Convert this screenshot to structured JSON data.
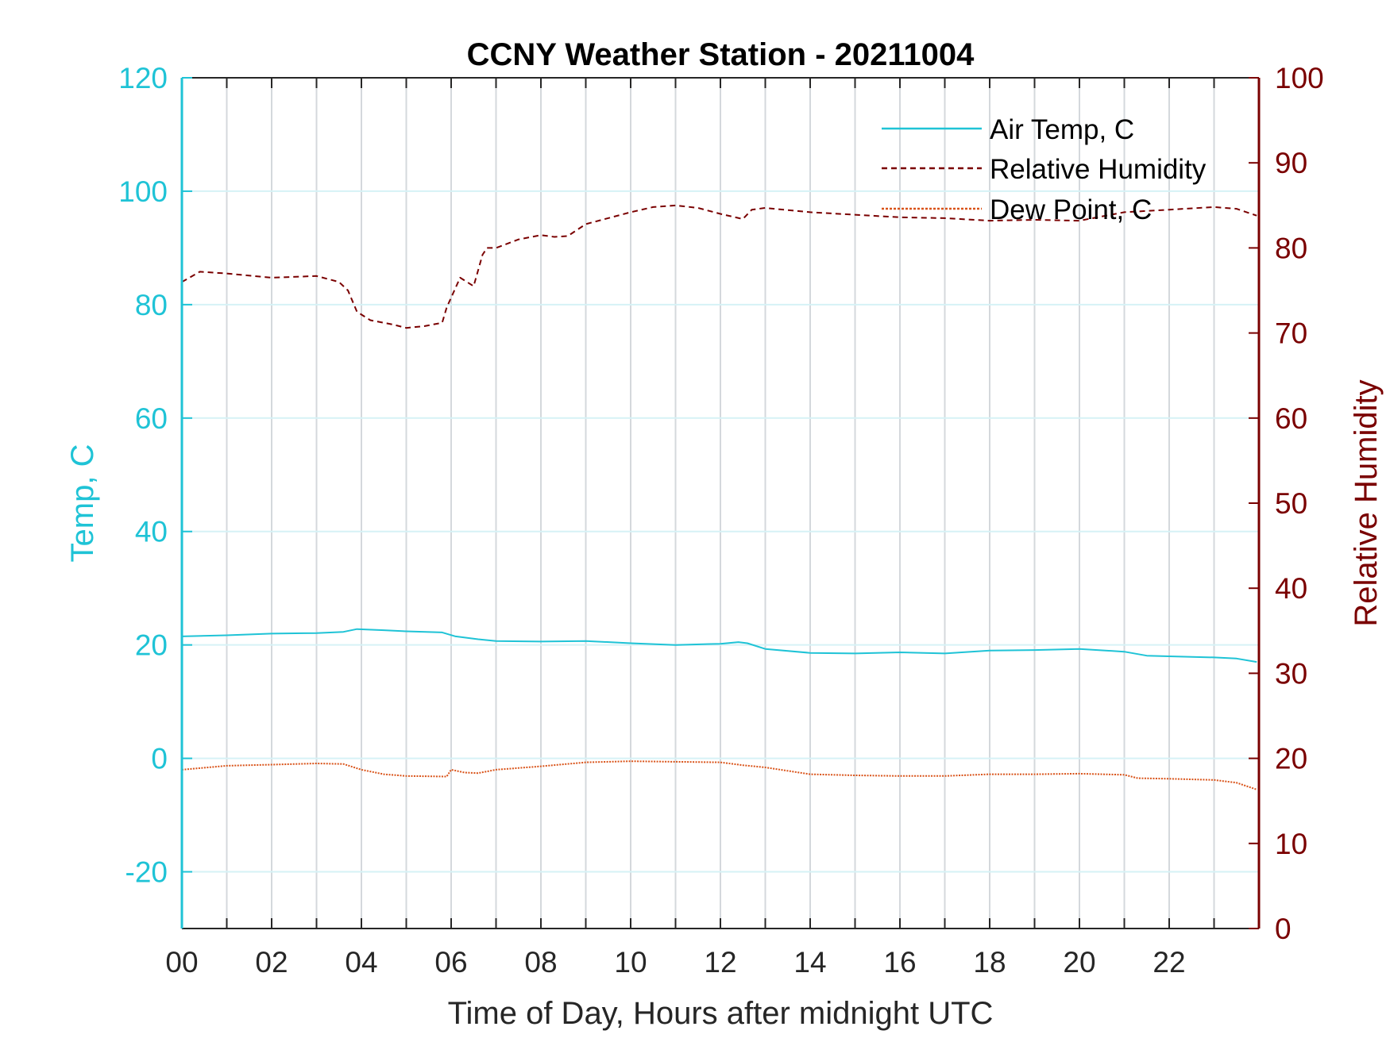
{
  "colors": {
    "air_temp": "#1fc3d6",
    "rel_humidity": "#7a0000",
    "dew_point": "#d95319",
    "left_axis": "#1fc3d6",
    "right_axis": "#7a0000",
    "grid_vertical": "#d4d8dc",
    "grid_horizontal": "#d6f2f6"
  },
  "chart_data": {
    "type": "line",
    "title": "CCNY Weather Station - 20211004",
    "xlabel": "Time of Day, Hours after midnight UTC",
    "ylabel_left": "Temp, C",
    "ylabel_right": "Relative Humidity",
    "xlim": [
      0,
      24
    ],
    "ylim_left": [
      -30,
      120
    ],
    "ylim_right": [
      0,
      100
    ],
    "x_tick_values": [
      0,
      2,
      4,
      6,
      8,
      10,
      12,
      14,
      16,
      18,
      20,
      22
    ],
    "x_tick_labels": [
      "00",
      "02",
      "04",
      "06",
      "08",
      "10",
      "12",
      "14",
      "16",
      "18",
      "20",
      "22"
    ],
    "y_left_ticks": [
      -20,
      0,
      20,
      40,
      60,
      80,
      100,
      120
    ],
    "y_left_tick_labels": [
      "-20",
      "0",
      "20",
      "40",
      "60",
      "80",
      "100",
      "120"
    ],
    "y_right_ticks": [
      0,
      10,
      20,
      30,
      40,
      50,
      60,
      70,
      80,
      90,
      100
    ],
    "y_right_tick_labels": [
      "0",
      "10",
      "20",
      "30",
      "40",
      "50",
      "60",
      "70",
      "80",
      "90",
      "100"
    ],
    "grid": true,
    "legend_position": "top-right",
    "series": [
      {
        "name": "Air Temp, C",
        "axis": "left",
        "style": "solid",
        "x": [
          0,
          1,
          2,
          3,
          3.6,
          3.9,
          4.5,
          5,
          5.8,
          6.1,
          6.6,
          7,
          8,
          9,
          10,
          11,
          12,
          12.4,
          12.6,
          13,
          14,
          15,
          16,
          17,
          18,
          19,
          20,
          21,
          21.5,
          22,
          23,
          23.5,
          23.95
        ],
        "y": [
          21.5,
          21.7,
          22,
          22.1,
          22.3,
          22.8,
          22.6,
          22.4,
          22.2,
          21.5,
          21,
          20.7,
          20.6,
          20.7,
          20.3,
          20,
          20.2,
          20.5,
          20.3,
          19.3,
          18.6,
          18.5,
          18.7,
          18.5,
          19,
          19.1,
          19.3,
          18.8,
          18.1,
          18,
          17.8,
          17.6,
          17
        ]
      },
      {
        "name": "Relative Humidity",
        "axis": "right",
        "style": "dashed",
        "x": [
          0,
          0.4,
          1,
          2,
          3,
          3.5,
          3.7,
          3.9,
          4.2,
          4.7,
          5,
          5.4,
          5.8,
          5.9,
          6.2,
          6.5,
          6.7,
          6.8,
          7,
          7.5,
          8,
          8.3,
          8.6,
          9,
          10,
          10.5,
          11,
          11.5,
          12,
          12.5,
          12.7,
          13,
          14,
          15,
          16,
          17,
          18,
          19,
          20,
          21,
          22,
          23,
          23.5,
          23.95
        ],
        "y": [
          76,
          77.2,
          77,
          76.5,
          76.7,
          76,
          75,
          72.5,
          71.5,
          71,
          70.6,
          70.8,
          71.2,
          73,
          76.5,
          75.5,
          79.2,
          80,
          80,
          81,
          81.5,
          81.3,
          81.4,
          82.8,
          84.2,
          84.8,
          85,
          84.7,
          84,
          83.4,
          84.5,
          84.7,
          84.2,
          83.9,
          83.6,
          83.5,
          83.2,
          83.3,
          83.2,
          84.2,
          84.5,
          84.8,
          84.6,
          83.8
        ]
      },
      {
        "name": "Dew Point, C",
        "axis": "left",
        "style": "dotted",
        "x": [
          0,
          1,
          2,
          3,
          3.6,
          4,
          4.5,
          5,
          5.9,
          6,
          6.3,
          6.6,
          7,
          8,
          9,
          10,
          11,
          12,
          12.5,
          13,
          14,
          15,
          16,
          17,
          18,
          19,
          20,
          21,
          21.3,
          22,
          23,
          23.5,
          23.95
        ],
        "y": [
          -2,
          -1.3,
          -1.1,
          -0.9,
          -1,
          -2,
          -2.8,
          -3.1,
          -3.2,
          -2,
          -2.5,
          -2.6,
          -2,
          -1.4,
          -0.7,
          -0.5,
          -0.6,
          -0.7,
          -1.2,
          -1.6,
          -2.8,
          -3,
          -3.1,
          -3.1,
          -2.8,
          -2.8,
          -2.7,
          -2.9,
          -3.5,
          -3.6,
          -3.8,
          -4.3,
          -5.5
        ]
      }
    ]
  }
}
